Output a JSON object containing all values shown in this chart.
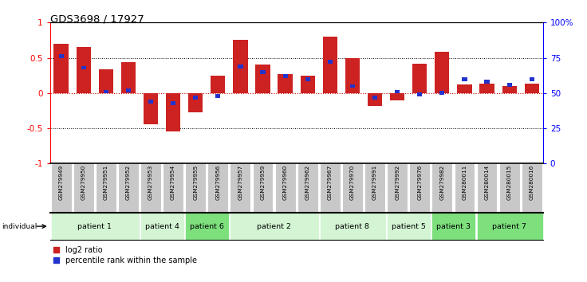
{
  "title": "GDS3698 / 17927",
  "samples": [
    "GSM279949",
    "GSM279950",
    "GSM279951",
    "GSM279952",
    "GSM279953",
    "GSM279954",
    "GSM279955",
    "GSM279956",
    "GSM279957",
    "GSM279959",
    "GSM279960",
    "GSM279962",
    "GSM279967",
    "GSM279970",
    "GSM279991",
    "GSM279992",
    "GSM279976",
    "GSM279982",
    "GSM280011",
    "GSM280014",
    "GSM280015",
    "GSM280016"
  ],
  "log2_ratio": [
    0.7,
    0.65,
    0.34,
    0.44,
    -0.44,
    -0.54,
    -0.27,
    0.25,
    0.75,
    0.4,
    0.27,
    0.25,
    0.8,
    0.5,
    -0.18,
    -0.1,
    0.42,
    0.58,
    0.12,
    0.13,
    0.1,
    0.13
  ],
  "percentile_rank": [
    76,
    68,
    51,
    52,
    44,
    43,
    47,
    48,
    69,
    65,
    62,
    60,
    72,
    55,
    47,
    51,
    49,
    50,
    60,
    58,
    56,
    60
  ],
  "patient_groups": [
    {
      "label": "patient 1",
      "start": 0,
      "end": 4,
      "color": "#d4f5d4"
    },
    {
      "label": "patient 4",
      "start": 4,
      "end": 6,
      "color": "#d4f5d4"
    },
    {
      "label": "patient 6",
      "start": 6,
      "end": 8,
      "color": "#7de07d"
    },
    {
      "label": "patient 2",
      "start": 8,
      "end": 12,
      "color": "#d4f5d4"
    },
    {
      "label": "patient 8",
      "start": 12,
      "end": 15,
      "color": "#d4f5d4"
    },
    {
      "label": "patient 5",
      "start": 15,
      "end": 17,
      "color": "#d4f5d4"
    },
    {
      "label": "patient 3",
      "start": 17,
      "end": 19,
      "color": "#7de07d"
    },
    {
      "label": "patient 7",
      "start": 19,
      "end": 22,
      "color": "#7de07d"
    }
  ],
  "bar_color_red": "#cc2222",
  "bar_color_blue": "#2233cc",
  "ylim_left": [
    -1.0,
    1.0
  ],
  "ylim_right": [
    0,
    100
  ],
  "yticks_left": [
    -1.0,
    -0.5,
    0.0,
    0.5,
    1.0
  ],
  "ytick_labels_left": [
    "-1",
    "-0.5",
    "0",
    "0.5",
    "1"
  ],
  "yticks_right": [
    0,
    25,
    50,
    75,
    100
  ],
  "ytick_labels_right": [
    "0",
    "25",
    "50",
    "75",
    "100%"
  ],
  "sample_box_color": "#c8c8c8",
  "sample_box_edge": "#ffffff"
}
